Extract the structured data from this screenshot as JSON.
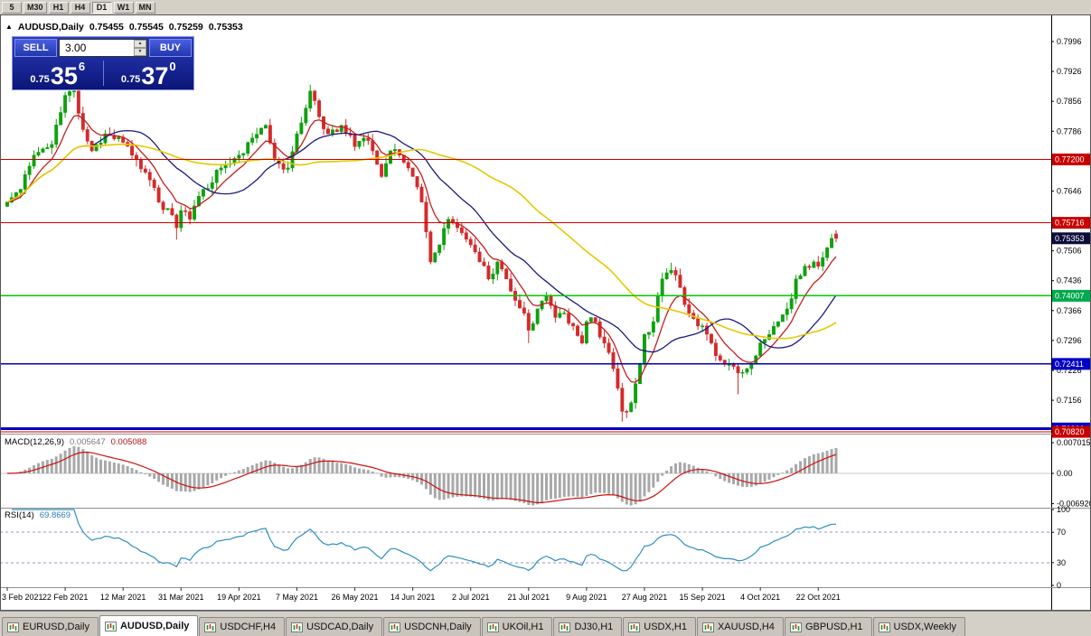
{
  "toolbar": {
    "timeframes": [
      {
        "label": "5",
        "active": false
      },
      {
        "label": "M30",
        "active": false
      },
      {
        "label": "H1",
        "active": false
      },
      {
        "label": "H4",
        "active": false
      },
      {
        "label": "D1",
        "active": true
      },
      {
        "label": "W1",
        "active": false
      },
      {
        "label": "MN",
        "active": false
      }
    ]
  },
  "chart_header": {
    "collapse_icon": "▲",
    "symbol": "AUDUSD,Daily",
    "open": "0.75455",
    "high": "0.75545",
    "low": "0.75259",
    "close": "0.75353"
  },
  "trade_panel": {
    "sell_label": "SELL",
    "buy_label": "BUY",
    "volume": "3.00",
    "spinner_up": "▲",
    "spinner_down": "▼",
    "bid": {
      "prefix": "0.75",
      "big": "35",
      "sup": "6"
    },
    "ask": {
      "prefix": "0.75",
      "big": "37",
      "sup": "0"
    }
  },
  "indicators": {
    "macd": {
      "name": "MACD(12,26,9)",
      "value_main": "0.005647",
      "value_signal": "0.005088",
      "axis_labels": [
        {
          "v": 0.007015,
          "text": "0.007015"
        },
        {
          "v": 0,
          "text": "0.00"
        },
        {
          "v": -0.00692,
          "text": "-0.006920"
        }
      ]
    },
    "rsi": {
      "name": "RSI(14)",
      "value": "69.8669",
      "axis_labels": [
        {
          "v": 100,
          "text": "100"
        },
        {
          "v": 70,
          "text": "70"
        },
        {
          "v": 30,
          "text": "30"
        },
        {
          "v": 0,
          "text": "0"
        }
      ],
      "levels": [
        70,
        30
      ]
    }
  },
  "price_axis": {
    "labels": [
      {
        "v": 0.7996,
        "text": "0.7996"
      },
      {
        "v": 0.7926,
        "text": "0.7926"
      },
      {
        "v": 0.7856,
        "text": "0.7856"
      },
      {
        "v": 0.7786,
        "text": "0.7786"
      },
      {
        "v": 0.7716,
        "text": "0.7716"
      },
      {
        "v": 0.7646,
        "text": "0.7646"
      },
      {
        "v": 0.7576,
        "text": "0.7576"
      },
      {
        "v": 0.7506,
        "text": "0.7506"
      },
      {
        "v": 0.7436,
        "text": "0.7436"
      },
      {
        "v": 0.7366,
        "text": "0.7366"
      },
      {
        "v": 0.7296,
        "text": "0.7296"
      },
      {
        "v": 0.7226,
        "text": "0.7226"
      },
      {
        "v": 0.7156,
        "text": "0.7156"
      },
      {
        "v": 0.7086,
        "text": "0.7086"
      }
    ],
    "badges": [
      {
        "v": 0.772,
        "text": "0.77200",
        "bg": "#c80000",
        "fg": "#ffffff"
      },
      {
        "v": 0.75716,
        "text": "0.75716",
        "bg": "#c80000",
        "fg": "#ffffff"
      },
      {
        "v": 0.74007,
        "text": "0.74007",
        "bg": "#00a84e",
        "fg": "#ffffff"
      },
      {
        "v": 0.72411,
        "text": "0.72411",
        "bg": "#0000c8",
        "fg": "#ffffff"
      },
      {
        "v": 0.709,
        "text": "0.70900",
        "bg": "#0000c8",
        "fg": "#ffffff"
      },
      {
        "v": 0.7082,
        "text": "0.70820",
        "bg": "#c80000",
        "fg": "#ffffff"
      },
      {
        "v": 0.75353,
        "text": "0.75353",
        "bg": "#0d0d3c",
        "fg": "#ffffff",
        "current": true
      }
    ]
  },
  "dates": [
    {
      "i": 0,
      "label": "3 Feb 2021"
    },
    {
      "i": 13,
      "label": "22 Feb 2021"
    },
    {
      "i": 26,
      "label": "12 Mar 2021"
    },
    {
      "i": 39,
      "label": "31 Mar 2021"
    },
    {
      "i": 52,
      "label": "19 Apr 2021"
    },
    {
      "i": 65,
      "label": "7 May 2021"
    },
    {
      "i": 78,
      "label": "26 May 2021"
    },
    {
      "i": 91,
      "label": "14 Jun 2021"
    },
    {
      "i": 104,
      "label": "2 Jul 2021"
    },
    {
      "i": 117,
      "label": "21 Jul 2021"
    },
    {
      "i": 130,
      "label": "9 Aug 2021"
    },
    {
      "i": 143,
      "label": "27 Aug 2021"
    },
    {
      "i": 156,
      "label": "15 Sep 2021"
    },
    {
      "i": 169,
      "label": "4 Oct 2021"
    },
    {
      "i": 182,
      "label": "22 Oct 2021"
    }
  ],
  "tabs": {
    "items": [
      {
        "label": "EURUSD,Daily",
        "active": false
      },
      {
        "label": "AUDUSD,Daily",
        "active": true
      },
      {
        "label": "USDCHF,H4",
        "active": false
      },
      {
        "label": "USDCAD,Daily",
        "active": false
      },
      {
        "label": "USDCNH,Daily",
        "active": false
      },
      {
        "label": "UKOil,H1",
        "active": false
      },
      {
        "label": "DJ30,H1",
        "active": false
      },
      {
        "label": "USDX,H1",
        "active": false
      },
      {
        "label": "XAUUSD,H4",
        "active": false
      },
      {
        "label": "GBPUSD,H1",
        "active": false
      },
      {
        "label": "USDX,Weekly",
        "active": false
      }
    ]
  },
  "chart_data": {
    "type": "candlestick",
    "symbol": "AUDUSD",
    "period": "Daily",
    "current_quote": {
      "bid": 0.75356,
      "ask": 0.7537
    },
    "current_candle": {
      "open": 0.75455,
      "high": 0.75545,
      "low": 0.75259,
      "close": 0.75353
    },
    "y_axis": {
      "top_price": 0.7996,
      "bottom_price": 0.7082,
      "label_step": 0.007
    },
    "candle_count": 187,
    "noise_seed": 11,
    "noise_amp": 0.0022,
    "wick_amp": 0.0016,
    "anchors": {
      "index": [
        0,
        3,
        6,
        10,
        13,
        15,
        17,
        19,
        22,
        26,
        28,
        31,
        34,
        37,
        38,
        39,
        41,
        44,
        48,
        52,
        55,
        58,
        60,
        63,
        65,
        67,
        68,
        70,
        72,
        75,
        78,
        80,
        82,
        84,
        86,
        88,
        90,
        91,
        93,
        95,
        97,
        99,
        101,
        104,
        106,
        108,
        110,
        112,
        114,
        116,
        117,
        119,
        121,
        123,
        125,
        127,
        129,
        130,
        132,
        134,
        136,
        138,
        140,
        142,
        143,
        145,
        147,
        149,
        151,
        153,
        155,
        156,
        158,
        160,
        162,
        164,
        166,
        168,
        169,
        171,
        173,
        175,
        177,
        179,
        181,
        182,
        183,
        184,
        185,
        186
      ],
      "close": [
        0.762,
        0.765,
        0.773,
        0.7755,
        0.787,
        0.788,
        0.779,
        0.774,
        0.778,
        0.776,
        0.773,
        0.769,
        0.762,
        0.759,
        0.756,
        0.76,
        0.758,
        0.765,
        0.77,
        0.773,
        0.777,
        0.78,
        0.772,
        0.77,
        0.778,
        0.784,
        0.788,
        0.782,
        0.778,
        0.78,
        0.775,
        0.777,
        0.774,
        0.768,
        0.774,
        0.773,
        0.77,
        0.768,
        0.762,
        0.748,
        0.752,
        0.758,
        0.756,
        0.752,
        0.748,
        0.744,
        0.748,
        0.744,
        0.739,
        0.736,
        0.732,
        0.737,
        0.74,
        0.735,
        0.736,
        0.733,
        0.729,
        0.734,
        0.734,
        0.729,
        0.723,
        0.713,
        0.715,
        0.724,
        0.731,
        0.734,
        0.744,
        0.746,
        0.742,
        0.736,
        0.733,
        0.733,
        0.729,
        0.725,
        0.724,
        0.722,
        0.723,
        0.726,
        0.729,
        0.731,
        0.734,
        0.737,
        0.744,
        0.747,
        0.748,
        0.747,
        0.749,
        0.7513,
        0.7535,
        0.75353
      ]
    },
    "wick_overrides": [
      {
        "i": 15,
        "high": 0.79
      },
      {
        "i": 38,
        "low": 0.7532
      },
      {
        "i": 68,
        "high": 0.7895
      },
      {
        "i": 117,
        "low": 0.729
      },
      {
        "i": 138,
        "low": 0.7106
      },
      {
        "i": 149,
        "high": 0.7478
      },
      {
        "i": 164,
        "low": 0.717
      }
    ],
    "levels": [
      {
        "price": 0.772,
        "color": "#cc0000",
        "width": 1.2
      },
      {
        "price": 0.75716,
        "color": "#cc0000",
        "width": 1.2
      },
      {
        "price": 0.74007,
        "color": "#00c800",
        "width": 1.6
      },
      {
        "price": 0.72411,
        "color": "#0000bb",
        "width": 1.6
      },
      {
        "price": 0.709,
        "color": "#0000bb",
        "width": 3
      },
      {
        "price": 0.7082,
        "color": "#cc0000",
        "width": 1.4
      }
    ],
    "moving_averages": [
      {
        "type": "ema",
        "period": 8,
        "color": "#c41e1e",
        "width": 1.3,
        "name": "ma-fast-red"
      },
      {
        "type": "sma",
        "period": 20,
        "color": "#1a1a80",
        "width": 1.3,
        "name": "ma-mid-navy"
      },
      {
        "type": "sma",
        "period": 50,
        "color": "#e6c800",
        "width": 1.6,
        "name": "ma-slow-yellow"
      }
    ],
    "candle_colors": {
      "up": "#0fa00f",
      "down": "#d42a2a"
    },
    "macd": {
      "fast": 12,
      "slow": 26,
      "signal": 9,
      "hist_color": "#a8a8a8",
      "signal_color": "#cc1111",
      "scale_top": 0.007015
    },
    "rsi": {
      "period": 14,
      "color": "#2f8fc0"
    }
  }
}
